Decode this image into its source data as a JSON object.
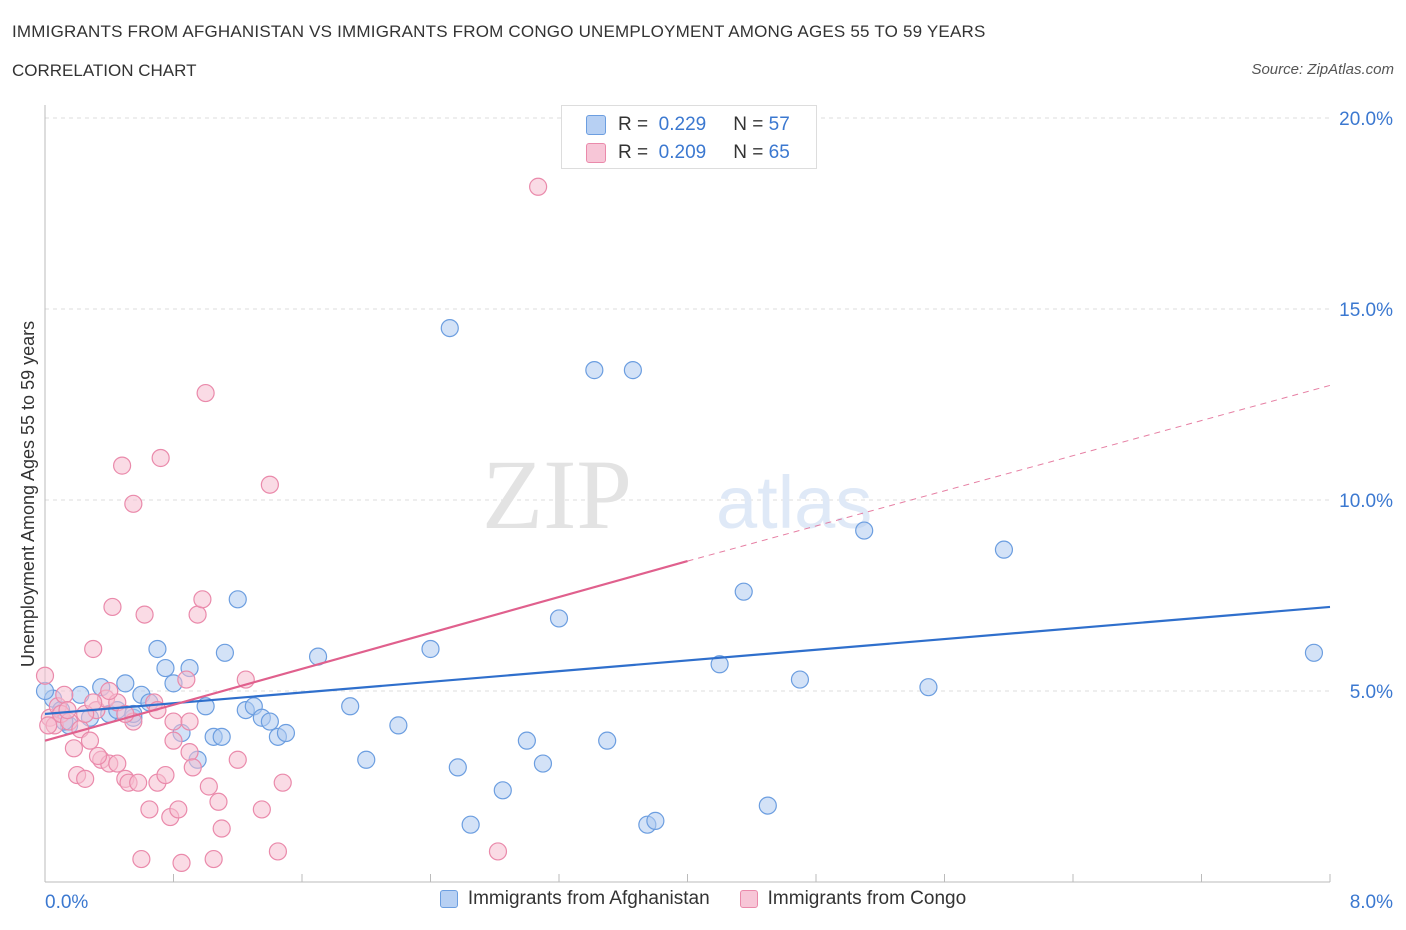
{
  "header": {
    "title": "IMMIGRANTS FROM AFGHANISTAN VS IMMIGRANTS FROM CONGO UNEMPLOYMENT AMONG AGES 55 TO 59 YEARS",
    "subtitle": "CORRELATION CHART",
    "source": "Source: ZipAtlas.com"
  },
  "watermark": {
    "zip": "ZIP",
    "atlas": "atlas"
  },
  "stats": {
    "afghanistan": {
      "r_label": "R =",
      "r_value": "0.229",
      "n_label": "N =",
      "n_value": "57"
    },
    "congo": {
      "r_label": "R =",
      "r_value": "0.209",
      "n_label": "N =",
      "n_value": "65"
    }
  },
  "colors": {
    "afghanistan_fill": "#aecbf0",
    "afghanistan_stroke": "#6c9ee0",
    "afghanistan_line": "#2f6fcc",
    "congo_fill": "#f6bdd0",
    "congo_stroke": "#ea8aab",
    "congo_line": "#e0608d",
    "axis_text": "#3b78d0",
    "grid": "#dddddd"
  },
  "chart_data": {
    "type": "scatter",
    "ylabel": "Unemployment Among Ages 55 to 59 years",
    "xlim": [
      0,
      8
    ],
    "ylim": [
      0,
      20
    ],
    "x_tick_labels": [
      {
        "value": 0,
        "label": "0.0%"
      },
      {
        "value": 8,
        "label": "8.0%"
      }
    ],
    "y_tick_labels": [
      {
        "value": 5,
        "label": "5.0%"
      },
      {
        "value": 10,
        "label": "10.0%"
      },
      {
        "value": 15,
        "label": "15.0%"
      },
      {
        "value": 20,
        "label": "20.0%"
      }
    ],
    "legend_position": "bottom",
    "series": [
      {
        "name": "Immigrants from Afghanistan",
        "color": "#6c9ee0",
        "points": [
          [
            0.05,
            4.8
          ],
          [
            0.1,
            4.5
          ],
          [
            0.15,
            4.1
          ],
          [
            0.22,
            4.9
          ],
          [
            0.28,
            4.3
          ],
          [
            0.35,
            5.1
          ],
          [
            0.4,
            4.4
          ],
          [
            0.45,
            4.5
          ],
          [
            0.5,
            5.2
          ],
          [
            0.55,
            4.3
          ],
          [
            0.6,
            4.9
          ],
          [
            0.65,
            4.7
          ],
          [
            0.7,
            6.1
          ],
          [
            0.75,
            5.6
          ],
          [
            0.8,
            5.2
          ],
          [
            0.85,
            3.9
          ],
          [
            0.9,
            5.6
          ],
          [
            0.95,
            3.2
          ],
          [
            1.0,
            4.6
          ],
          [
            1.05,
            3.8
          ],
          [
            1.1,
            3.8
          ],
          [
            1.12,
            6.0
          ],
          [
            1.2,
            7.4
          ],
          [
            1.25,
            4.5
          ],
          [
            1.3,
            4.6
          ],
          [
            1.35,
            4.3
          ],
          [
            1.4,
            4.2
          ],
          [
            1.45,
            3.8
          ],
          [
            1.5,
            3.9
          ],
          [
            1.7,
            5.9
          ],
          [
            1.9,
            4.6
          ],
          [
            2.0,
            3.2
          ],
          [
            2.2,
            4.1
          ],
          [
            2.4,
            6.1
          ],
          [
            2.52,
            14.5
          ],
          [
            2.57,
            3.0
          ],
          [
            2.65,
            1.5
          ],
          [
            2.85,
            2.4
          ],
          [
            3.0,
            3.7
          ],
          [
            3.1,
            3.1
          ],
          [
            3.2,
            6.9
          ],
          [
            3.42,
            13.4
          ],
          [
            3.5,
            3.7
          ],
          [
            3.66,
            13.4
          ],
          [
            3.75,
            1.5
          ],
          [
            3.8,
            1.6
          ],
          [
            4.2,
            5.7
          ],
          [
            4.35,
            7.6
          ],
          [
            4.5,
            2.0
          ],
          [
            4.7,
            5.3
          ],
          [
            5.1,
            9.2
          ],
          [
            5.5,
            5.1
          ],
          [
            5.97,
            8.7
          ],
          [
            7.9,
            6.0
          ],
          [
            0.0,
            5.0
          ],
          [
            0.12,
            4.2
          ],
          [
            0.55,
            4.4
          ]
        ]
      },
      {
        "name": "Immigrants from Congo",
        "color": "#ea8aab",
        "points": [
          [
            0.0,
            5.4
          ],
          [
            0.03,
            4.3
          ],
          [
            0.06,
            4.1
          ],
          [
            0.08,
            4.6
          ],
          [
            0.1,
            4.4
          ],
          [
            0.12,
            4.9
          ],
          [
            0.15,
            4.2
          ],
          [
            0.18,
            3.5
          ],
          [
            0.2,
            2.8
          ],
          [
            0.22,
            4.0
          ],
          [
            0.25,
            2.7
          ],
          [
            0.28,
            3.7
          ],
          [
            0.3,
            6.1
          ],
          [
            0.32,
            4.5
          ],
          [
            0.35,
            3.2
          ],
          [
            0.38,
            4.8
          ],
          [
            0.4,
            3.1
          ],
          [
            0.42,
            7.2
          ],
          [
            0.45,
            4.7
          ],
          [
            0.48,
            10.9
          ],
          [
            0.5,
            2.7
          ],
          [
            0.52,
            2.6
          ],
          [
            0.55,
            4.2
          ],
          [
            0.58,
            2.6
          ],
          [
            0.6,
            0.6
          ],
          [
            0.62,
            7.0
          ],
          [
            0.65,
            1.9
          ],
          [
            0.68,
            4.7
          ],
          [
            0.7,
            2.6
          ],
          [
            0.72,
            11.1
          ],
          [
            0.75,
            2.8
          ],
          [
            0.78,
            1.7
          ],
          [
            0.8,
            4.2
          ],
          [
            0.83,
            1.9
          ],
          [
            0.85,
            0.5
          ],
          [
            0.88,
            5.3
          ],
          [
            0.9,
            3.4
          ],
          [
            0.92,
            3.0
          ],
          [
            0.95,
            7.0
          ],
          [
            0.98,
            7.4
          ],
          [
            1.0,
            12.8
          ],
          [
            1.02,
            2.5
          ],
          [
            1.05,
            0.6
          ],
          [
            1.08,
            2.1
          ],
          [
            1.1,
            1.4
          ],
          [
            1.2,
            3.2
          ],
          [
            1.25,
            5.3
          ],
          [
            1.35,
            1.9
          ],
          [
            1.4,
            10.4
          ],
          [
            1.45,
            0.8
          ],
          [
            1.48,
            2.6
          ],
          [
            2.82,
            0.8
          ],
          [
            3.07,
            18.2
          ],
          [
            0.25,
            4.4
          ],
          [
            0.33,
            3.3
          ],
          [
            0.4,
            5.0
          ],
          [
            0.45,
            3.1
          ],
          [
            0.5,
            4.4
          ],
          [
            0.55,
            9.9
          ],
          [
            0.7,
            4.5
          ],
          [
            0.8,
            3.7
          ],
          [
            0.9,
            4.2
          ],
          [
            0.14,
            4.5
          ],
          [
            0.02,
            4.1
          ],
          [
            0.3,
            4.7
          ]
        ]
      }
    ],
    "trend_lines": [
      {
        "name": "Immigrants from Afghanistan",
        "from": [
          0,
          4.4
        ],
        "to": [
          8,
          7.2
        ]
      },
      {
        "name": "Immigrants from Congo",
        "from": [
          0,
          3.7
        ],
        "to": [
          4,
          8.4
        ],
        "extends_dashed_to": [
          8,
          13.0
        ]
      }
    ]
  },
  "legend": {
    "afghanistan": "Immigrants from Afghanistan",
    "congo": "Immigrants from Congo"
  }
}
